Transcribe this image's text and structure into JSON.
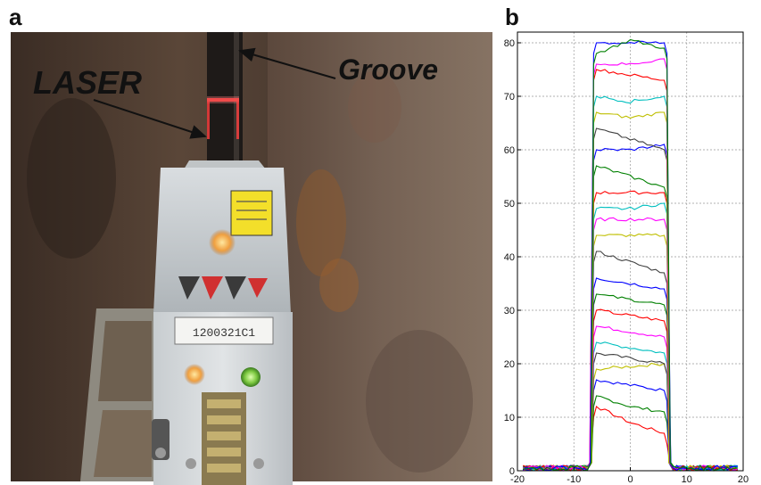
{
  "figure": {
    "panel_a": {
      "letter": "a",
      "callouts": {
        "laser": "LASER",
        "groove": "Groove"
      },
      "device_label": "1200321C1"
    },
    "panel_b": {
      "letter": "b"
    }
  },
  "chart_data": {
    "type": "line",
    "title": "",
    "xlabel": "",
    "ylabel": "",
    "xlim": [
      -20,
      20
    ],
    "ylim": [
      0,
      82
    ],
    "xticks": [
      -20,
      -10,
      0,
      10,
      20
    ],
    "yticks": [
      0,
      10,
      20,
      30,
      40,
      50,
      60,
      70,
      80
    ],
    "grid": true,
    "legend": "none",
    "profile_shape": {
      "left_wall_x": -7,
      "right_wall_x": 7,
      "left_top_x": -6,
      "right_top_x": 6,
      "baseline_y": 0.5,
      "outer_x": [
        -19,
        19
      ]
    },
    "series": [
      {
        "color": "#ff0000",
        "top_left_y": 12,
        "top_mid_y": 9,
        "top_right_y": 7
      },
      {
        "color": "#008000",
        "top_left_y": 14,
        "top_mid_y": 12,
        "top_right_y": 11
      },
      {
        "color": "#0000ff",
        "top_left_y": 17,
        "top_mid_y": 16,
        "top_right_y": 15
      },
      {
        "color": "#bfbf00",
        "top_left_y": 19,
        "top_mid_y": 19.5,
        "top_right_y": 20
      },
      {
        "color": "#404040",
        "top_left_y": 22,
        "top_mid_y": 21,
        "top_right_y": 20
      },
      {
        "color": "#00bfbf",
        "top_left_y": 24,
        "top_mid_y": 23,
        "top_right_y": 22
      },
      {
        "color": "#ff00ff",
        "top_left_y": 27,
        "top_mid_y": 26,
        "top_right_y": 25
      },
      {
        "color": "#ff0000",
        "top_left_y": 30,
        "top_mid_y": 29,
        "top_right_y": 28
      },
      {
        "color": "#008000",
        "top_left_y": 33,
        "top_mid_y": 32,
        "top_right_y": 31
      },
      {
        "color": "#0000ff",
        "top_left_y": 36,
        "top_mid_y": 35,
        "top_right_y": 34
      },
      {
        "color": "#404040",
        "top_left_y": 41,
        "top_mid_y": 39,
        "top_right_y": 37
      },
      {
        "color": "#bfbf00",
        "top_left_y": 44,
        "top_mid_y": 44,
        "top_right_y": 44
      },
      {
        "color": "#ff00ff",
        "top_left_y": 47,
        "top_mid_y": 47,
        "top_right_y": 47
      },
      {
        "color": "#ff0000",
        "top_left_y": 52,
        "top_mid_y": 52,
        "top_right_y": 52
      },
      {
        "color": "#00bfbf",
        "top_left_y": 49,
        "top_mid_y": 49,
        "top_right_y": 50
      },
      {
        "color": "#008000",
        "top_left_y": 57,
        "top_mid_y": 55,
        "top_right_y": 53
      },
      {
        "color": "#0000ff",
        "top_left_y": 60,
        "top_mid_y": 60,
        "top_right_y": 61
      },
      {
        "color": "#404040",
        "top_left_y": 64,
        "top_mid_y": 62,
        "top_right_y": 60
      },
      {
        "color": "#bfbf00",
        "top_left_y": 67,
        "top_mid_y": 66,
        "top_right_y": 67
      },
      {
        "color": "#00bfbf",
        "top_left_y": 70,
        "top_mid_y": 69,
        "top_right_y": 70
      },
      {
        "color": "#ff0000",
        "top_left_y": 75,
        "top_mid_y": 74,
        "top_right_y": 73
      },
      {
        "color": "#ff00ff",
        "top_left_y": 76,
        "top_mid_y": 76,
        "top_right_y": 77
      },
      {
        "color": "#0000ff",
        "top_left_y": 80,
        "top_mid_y": 80,
        "top_right_y": 80
      },
      {
        "color": "#008000",
        "top_left_y": 78,
        "top_mid_y": 80.5,
        "top_right_y": 79
      }
    ]
  }
}
